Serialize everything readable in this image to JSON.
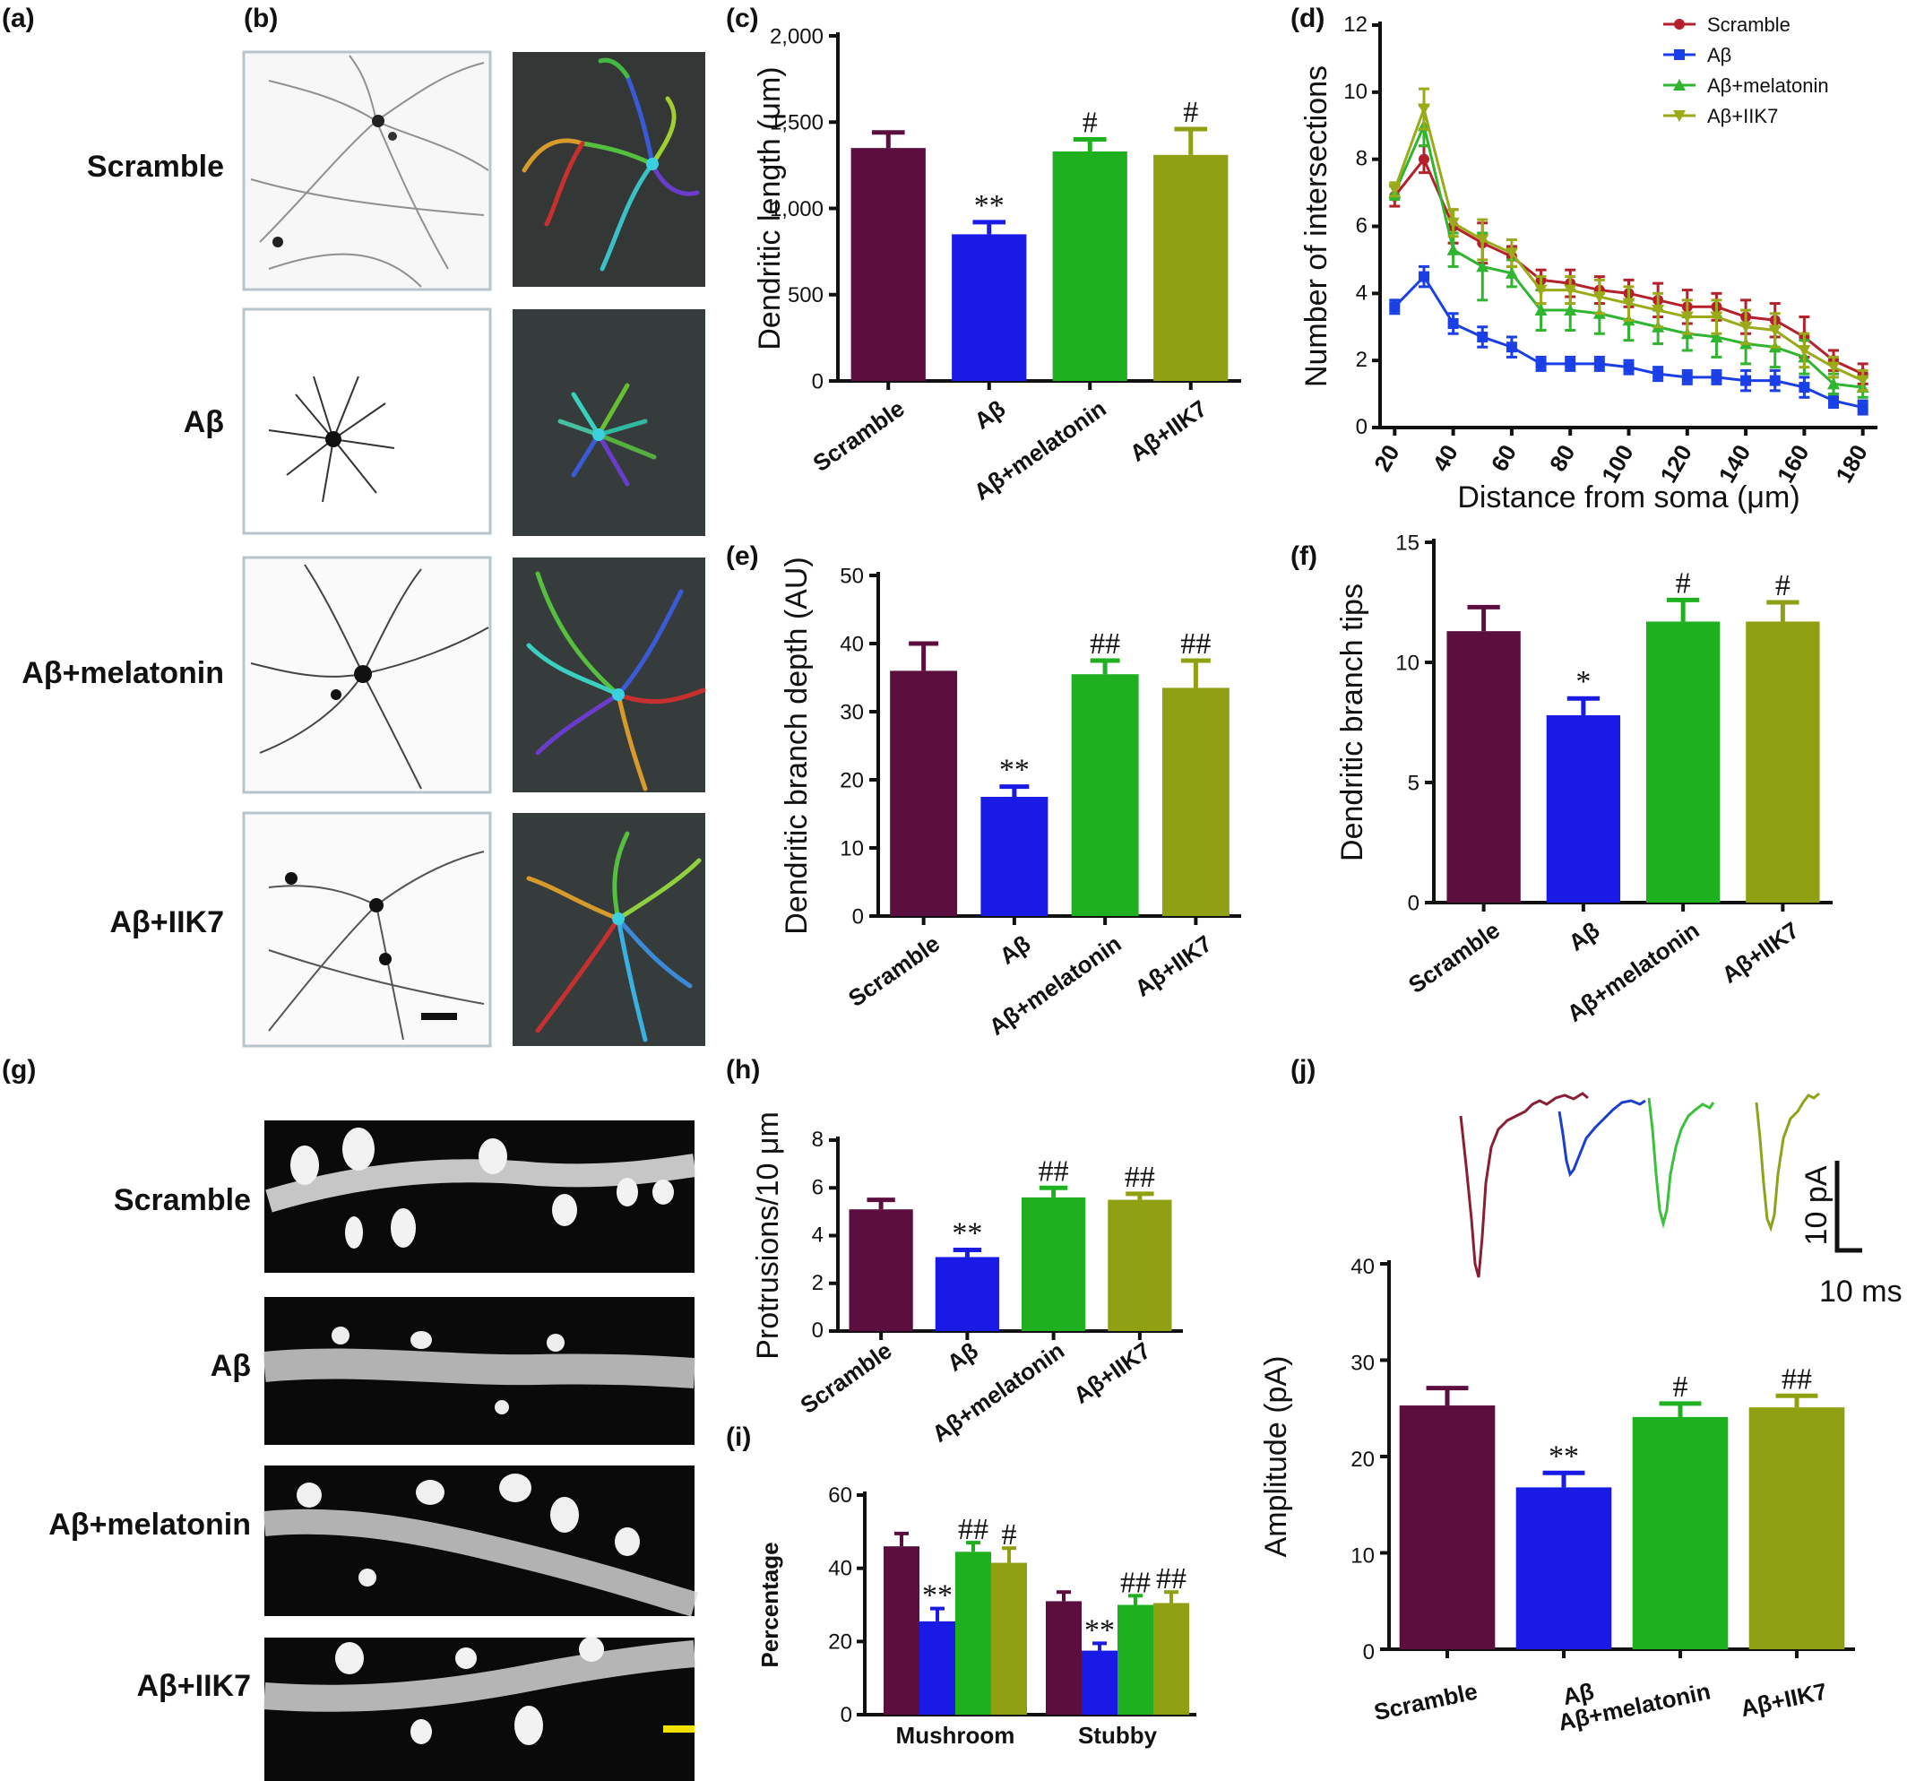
{
  "colors": {
    "scramble": "#5c0f3f",
    "abeta": "#1a1ae6",
    "melatonin": "#1fb01f",
    "iik7": "#8fa012",
    "d_scramble": "#b5202a",
    "d_abeta": "#1a3fe6",
    "d_melatonin": "#2fb52f",
    "d_iik7": "#9aaa18"
  },
  "panel_labels": {
    "a": "(a)",
    "b": "(b)",
    "c": "(c)",
    "d": "(d)",
    "e": "(e)",
    "f": "(f)",
    "g": "(g)",
    "h": "(h)",
    "i": "(i)",
    "j": "(j)"
  },
  "groups": [
    "Scramble",
    "Aβ",
    "Aβ+melatonin",
    "Aβ+IIK7"
  ],
  "trace_scale": {
    "y": "10 pA",
    "x": "10 ms"
  },
  "chart_data": [
    {
      "id": "c",
      "type": "bar",
      "categories": [
        "Scramble",
        "Aβ",
        "Aβ+melatonin",
        "Aβ+IIK7"
      ],
      "values": [
        1350,
        850,
        1330,
        1310
      ],
      "errors": [
        90,
        70,
        70,
        150
      ],
      "significance": [
        "",
        "**",
        "#",
        "#"
      ],
      "ylabel": "Dendritic length (μm)",
      "ylim": [
        0,
        2000
      ],
      "yticks": [
        0,
        500,
        1000,
        1500,
        2000
      ],
      "ytick_labels": [
        "0",
        "500",
        "1,000",
        "1,500",
        "2,000"
      ]
    },
    {
      "id": "d",
      "type": "line",
      "x": [
        20,
        30,
        40,
        50,
        60,
        70,
        80,
        90,
        100,
        110,
        120,
        130,
        140,
        150,
        160,
        170,
        180
      ],
      "series": [
        {
          "name": "Scramble",
          "marker": "circle",
          "values": [
            6.9,
            8.0,
            6.0,
            5.5,
            5.1,
            4.4,
            4.3,
            4.1,
            4.0,
            3.8,
            3.6,
            3.6,
            3.3,
            3.2,
            2.7,
            2.0,
            1.6
          ],
          "errors": [
            0.3,
            0.4,
            0.5,
            0.6,
            0.3,
            0.3,
            0.4,
            0.4,
            0.4,
            0.5,
            0.5,
            0.4,
            0.5,
            0.5,
            0.6,
            0.3,
            0.3
          ]
        },
        {
          "name": "Aβ",
          "marker": "square",
          "values": [
            3.6,
            4.5,
            3.1,
            2.7,
            2.4,
            1.9,
            1.9,
            1.9,
            1.8,
            1.6,
            1.5,
            1.5,
            1.4,
            1.4,
            1.2,
            0.8,
            0.6
          ],
          "errors": [
            0.2,
            0.3,
            0.3,
            0.3,
            0.3,
            0.2,
            0.2,
            0.2,
            0.2,
            0.2,
            0.2,
            0.2,
            0.3,
            0.3,
            0.3,
            0.2,
            0.2
          ]
        },
        {
          "name": "Aβ+melatonin",
          "marker": "triangle",
          "values": [
            7.0,
            9.0,
            5.3,
            4.8,
            4.6,
            3.5,
            3.5,
            3.4,
            3.2,
            3.0,
            2.8,
            2.7,
            2.5,
            2.4,
            2.1,
            1.3,
            1.2
          ],
          "errors": [
            0.2,
            0.6,
            0.5,
            1.0,
            0.4,
            0.6,
            0.6,
            0.6,
            0.6,
            0.5,
            0.5,
            0.6,
            0.6,
            0.6,
            0.5,
            0.3,
            0.3
          ]
        },
        {
          "name": "Aβ+IIK7",
          "marker": "triangle-down",
          "values": [
            7.1,
            9.5,
            6.1,
            5.6,
            5.2,
            4.1,
            4.1,
            3.9,
            3.7,
            3.5,
            3.3,
            3.3,
            3.0,
            2.9,
            2.3,
            1.8,
            1.4
          ],
          "errors": [
            0.2,
            0.6,
            0.4,
            0.6,
            0.4,
            0.4,
            0.4,
            0.5,
            0.5,
            0.5,
            0.5,
            0.5,
            0.5,
            0.5,
            0.5,
            0.3,
            0.3
          ]
        }
      ],
      "xlabel": "Distance from soma (μm)",
      "ylabel": "Number of intersections",
      "xlim": [
        15,
        185
      ],
      "ylim": [
        0,
        12
      ],
      "xticks": [
        20,
        40,
        60,
        80,
        100,
        120,
        140,
        160,
        180
      ],
      "yticks": [
        0,
        2,
        4,
        6,
        8,
        10,
        12
      ],
      "legend": "top-right"
    },
    {
      "id": "e",
      "type": "bar",
      "categories": [
        "Scramble",
        "Aβ",
        "Aβ+melatonin",
        "Aβ+IIK7"
      ],
      "values": [
        36,
        17.5,
        35.5,
        33.5
      ],
      "errors": [
        4,
        1.5,
        2,
        4
      ],
      "significance": [
        "",
        "**",
        "##",
        "##"
      ],
      "ylabel": "Dendritic branch depth (AU)",
      "ylim": [
        0,
        50
      ],
      "yticks": [
        0,
        10,
        20,
        30,
        40,
        50
      ],
      "ytick_labels": [
        "0",
        "10",
        "20",
        "30",
        "40",
        "50"
      ]
    },
    {
      "id": "f",
      "type": "bar",
      "categories": [
        "Scramble",
        "Aβ",
        "Aβ+melatonin",
        "Aβ+IIK7"
      ],
      "values": [
        11.3,
        7.8,
        11.7,
        11.7
      ],
      "errors": [
        1.0,
        0.7,
        0.9,
        0.8
      ],
      "significance": [
        "",
        "*",
        "#",
        "#"
      ],
      "ylabel": "Dendritic branch tips",
      "ylim": [
        0,
        15
      ],
      "yticks": [
        0,
        5,
        10,
        15
      ],
      "ytick_labels": [
        "0",
        "5",
        "10",
        "15"
      ]
    },
    {
      "id": "h",
      "type": "bar",
      "categories": [
        "Scramble",
        "Aβ",
        "Aβ+melatonin",
        "Aβ+IIK7"
      ],
      "values": [
        5.1,
        3.1,
        5.6,
        5.5
      ],
      "errors": [
        0.4,
        0.3,
        0.4,
        0.25
      ],
      "significance": [
        "",
        "**",
        "##",
        "##"
      ],
      "ylabel": "Protrusions/10 μm",
      "ylim": [
        0,
        8
      ],
      "yticks": [
        0,
        2,
        4,
        6,
        8
      ],
      "ytick_labels": [
        "0",
        "2",
        "4",
        "6",
        "8"
      ]
    },
    {
      "id": "i",
      "type": "bar",
      "categories": [
        "Mushroom",
        "Stubby"
      ],
      "series": [
        {
          "name": "Scramble",
          "values": [
            46,
            31
          ],
          "errors": [
            3.5,
            2.5
          ],
          "significance": [
            "",
            ""
          ]
        },
        {
          "name": "Aβ",
          "values": [
            25.5,
            17.5
          ],
          "errors": [
            3.5,
            2
          ],
          "significance": [
            "**",
            "**"
          ]
        },
        {
          "name": "Aβ+melatonin",
          "values": [
            44.5,
            30
          ],
          "errors": [
            2.5,
            2.5
          ],
          "significance": [
            "##",
            "##"
          ]
        },
        {
          "name": "Aβ+IIK7",
          "values": [
            41.5,
            30.5
          ],
          "errors": [
            4,
            3
          ],
          "significance": [
            "#",
            "##"
          ]
        }
      ],
      "ylabel": "Percentage",
      "ylim": [
        0,
        60
      ],
      "yticks": [
        0,
        20,
        40,
        60
      ],
      "ytick_labels": [
        "0",
        "20",
        "40",
        "60"
      ]
    },
    {
      "id": "j",
      "type": "bar",
      "categories": [
        "Scramble",
        "Aβ",
        "Aβ+melatonin",
        "Aβ+IIK7"
      ],
      "values": [
        25.3,
        16.8,
        24.1,
        25.1
      ],
      "errors": [
        1.8,
        1.5,
        1.4,
        1.2
      ],
      "significance": [
        "",
        "**",
        "#",
        "##"
      ],
      "ylabel": "Amplitude (pA)",
      "ylim": [
        0,
        40
      ],
      "yticks": [
        0,
        10,
        20,
        30,
        40
      ],
      "ytick_labels": [
        "0",
        "10",
        "20",
        "30",
        "40"
      ]
    }
  ]
}
